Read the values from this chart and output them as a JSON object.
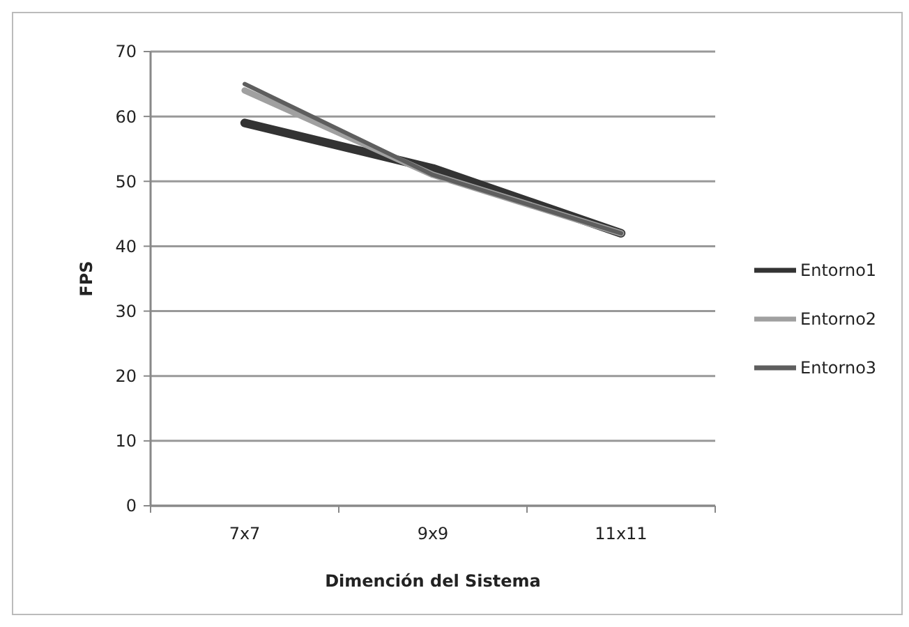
{
  "chart_data": {
    "type": "line",
    "xlabel": "Dimención del Sistema",
    "ylabel": "FPS",
    "categories": [
      "7x7",
      "9x9",
      "11x11"
    ],
    "series": [
      {
        "name": "Entorno1",
        "color": "#333333",
        "values": [
          59,
          52,
          42
        ]
      },
      {
        "name": "Entorno2",
        "color": "#a0a0a0",
        "values": [
          64,
          51,
          42
        ]
      },
      {
        "name": "Entorno3",
        "color": "#5e5e5e",
        "values": [
          65,
          51,
          42
        ]
      }
    ],
    "ylim": [
      0,
      70
    ],
    "yticks": [
      0,
      10,
      20,
      30,
      40,
      50,
      60,
      70
    ],
    "grid": "y",
    "legend": "right",
    "marker": "none",
    "line_style": "solid"
  }
}
